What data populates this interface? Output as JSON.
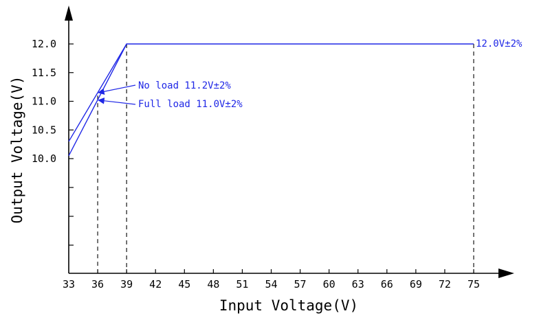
{
  "chart_data": {
    "type": "line",
    "title": "",
    "xlabel": "Input Voltage(V)",
    "ylabel": "Output Voltage(V)",
    "xlim": [
      33,
      75
    ],
    "ylim": [
      10.0,
      12.0
    ],
    "x_ticks": [
      33,
      36,
      39,
      42,
      45,
      48,
      51,
      54,
      57,
      60,
      63,
      66,
      69,
      72,
      75
    ],
    "y_ticks": [
      10.0,
      10.5,
      11.0,
      11.5,
      12.0
    ],
    "y_tick_labels": [
      "10.0",
      "10.5",
      "11.0",
      "11.5",
      "12.0"
    ],
    "grid": false,
    "series": [
      {
        "x": [
          33,
          39,
          75
        ],
        "y": [
          10.3,
          12.0,
          12.0
        ]
      },
      {
        "x": [
          33,
          39
        ],
        "y": [
          10.05,
          12.0
        ]
      }
    ],
    "reference_lines_x": [
      36,
      39,
      75
    ],
    "annotations": [
      {
        "text": "No load 11.2V±2%",
        "x": 36,
        "y": 11.15
      },
      {
        "text": "Full load 11.0V±2%",
        "x": 36,
        "y": 11.02
      },
      {
        "text": "12.0V±2%",
        "x": 75,
        "y": 12.0
      }
    ],
    "colors": {
      "series": "#1f27e6",
      "axis": "#000000"
    }
  }
}
